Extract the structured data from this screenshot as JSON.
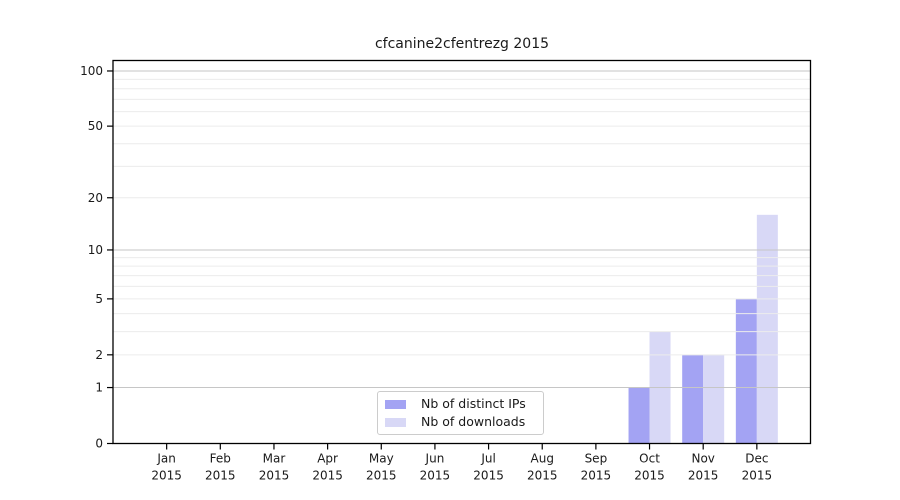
{
  "window": {
    "background": "#ffffff"
  },
  "chart_data": {
    "type": "bar",
    "title": "cfcanine2cfentrezg 2015",
    "categories": [
      "Jan",
      "Feb",
      "Mar",
      "Apr",
      "May",
      "Jun",
      "Jul",
      "Aug",
      "Sep",
      "Oct",
      "Nov",
      "Dec"
    ],
    "category_sublabel": "2015",
    "series": [
      {
        "name": "Nb of distinct IPs",
        "color": "#a3a3f3",
        "values": [
          0,
          0,
          0,
          0,
          0,
          0,
          0,
          0,
          0,
          1,
          2,
          5
        ]
      },
      {
        "name": "Nb of downloads",
        "color": "#d8d8f6",
        "values": [
          0,
          0,
          0,
          0,
          0,
          0,
          0,
          0,
          0,
          3,
          2,
          16
        ]
      }
    ],
    "yscale": "log10(1+y)",
    "ylim": [
      0,
      114
    ],
    "yticks": [
      0,
      1,
      2,
      5,
      10,
      20,
      50,
      100
    ],
    "grid_major": [
      1,
      10,
      100
    ],
    "grid_minor": [
      2,
      3,
      4,
      5,
      6,
      7,
      8,
      9,
      20,
      30,
      40,
      50,
      60,
      70,
      80,
      90
    ],
    "legend_position": "lower center",
    "colors": {
      "grid_major": "#c6c6c6",
      "grid_minor": "#ececec",
      "axis": "#000000",
      "text": "#1a1a1a"
    }
  }
}
